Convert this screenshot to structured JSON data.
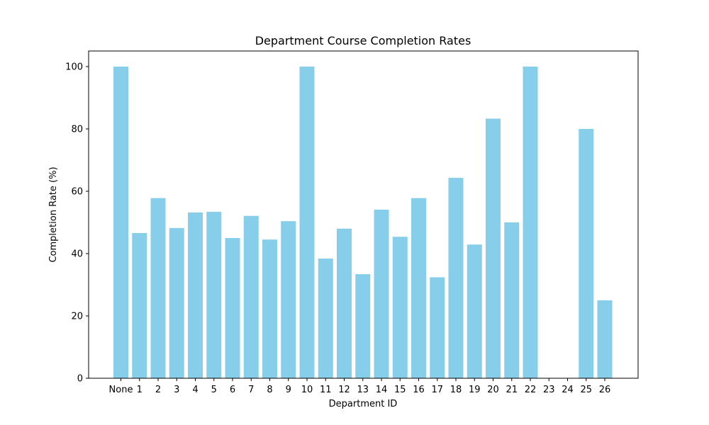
{
  "chart_data": {
    "type": "bar",
    "title": "Department Course Completion Rates",
    "xlabel": "Department ID",
    "ylabel": "Completion Rate (%)",
    "categories": [
      "None",
      "1",
      "2",
      "3",
      "4",
      "5",
      "6",
      "7",
      "8",
      "9",
      "10",
      "11",
      "12",
      "13",
      "14",
      "15",
      "16",
      "17",
      "18",
      "19",
      "20",
      "21",
      "22",
      "23",
      "24",
      "25",
      "26"
    ],
    "values": [
      100,
      46.6,
      57.8,
      48.2,
      53.2,
      53.4,
      45.0,
      52.1,
      44.5,
      50.4,
      100,
      38.4,
      48.0,
      33.4,
      54.1,
      45.4,
      57.8,
      32.4,
      64.3,
      42.9,
      83.3,
      50.0,
      100,
      0,
      0,
      80.0,
      25.0
    ],
    "yticks": [
      0,
      20,
      40,
      60,
      80,
      100
    ],
    "ylim": [
      0,
      105
    ],
    "bar_color": "#87ceeb",
    "grid": false,
    "legend": false
  }
}
